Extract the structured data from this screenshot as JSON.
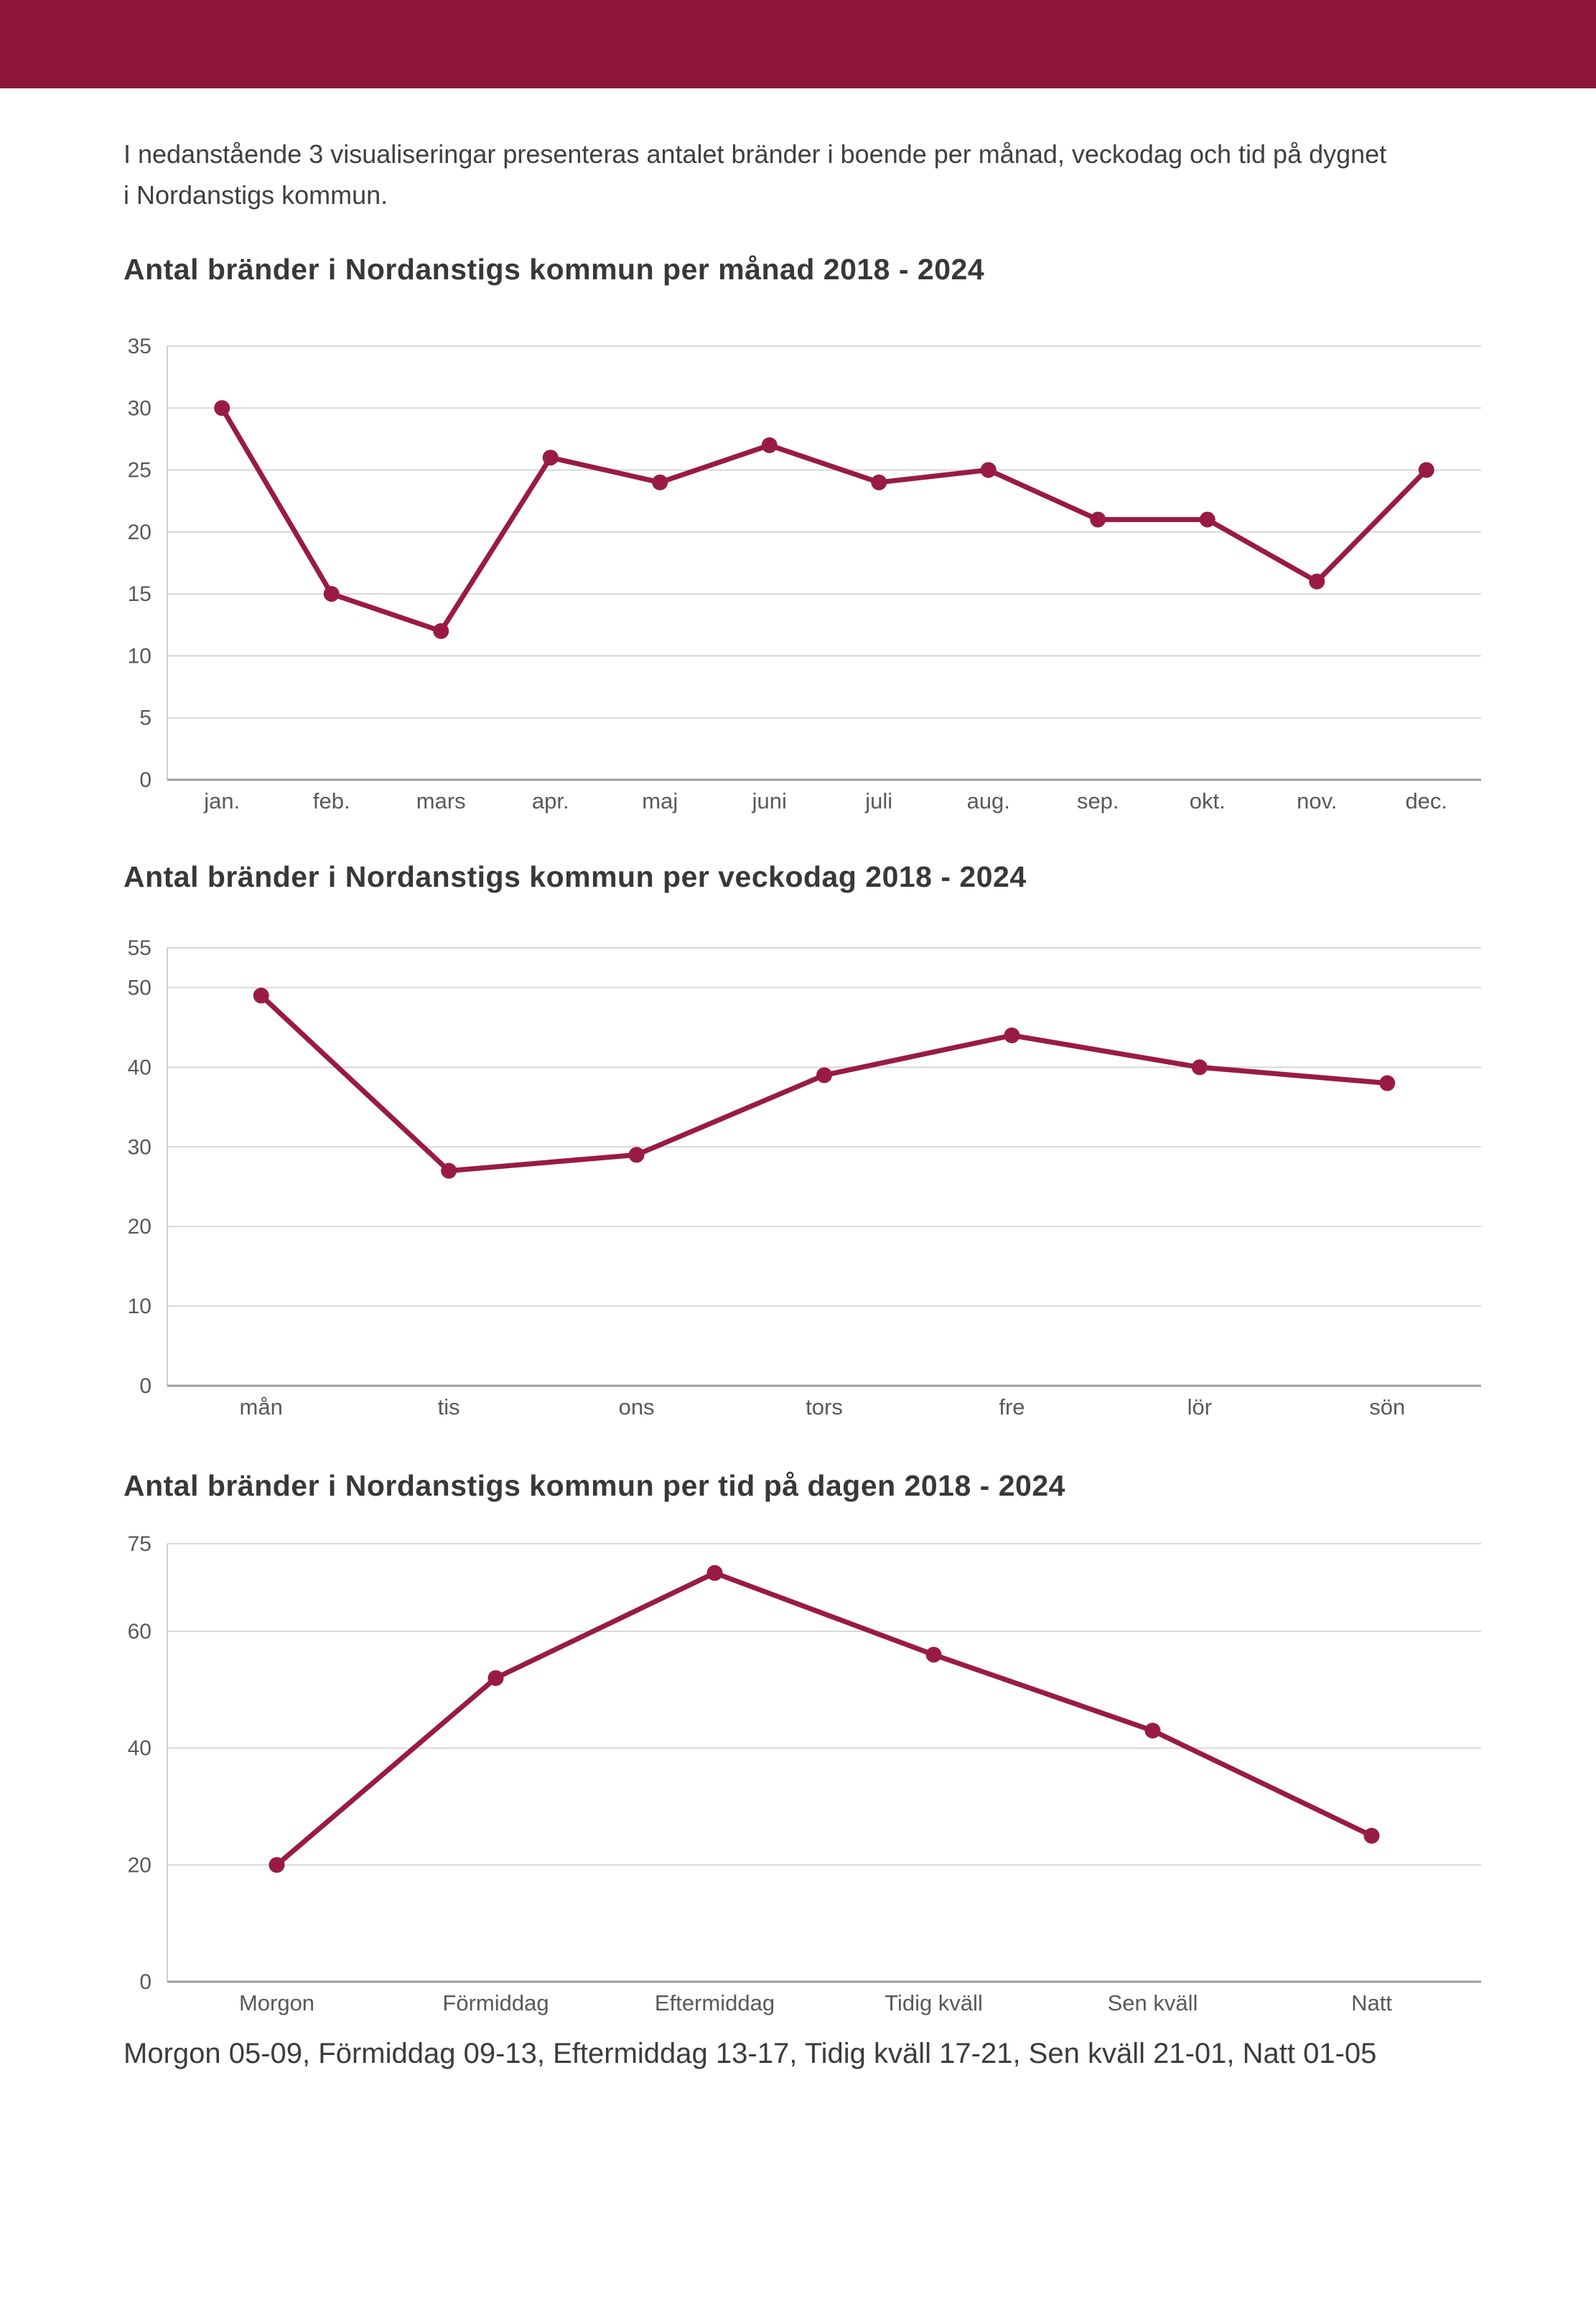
{
  "page": {
    "background": "#ffffff",
    "header_bar_color": "#8C1538",
    "accent_color": "#991B45",
    "text_color": "#3F3F3F",
    "axis_label_color": "#595959",
    "gridline_color": "#D8D8D8",
    "plot_border_color": "#CFCFCF",
    "axis_line_color": "#9B9B9B"
  },
  "intro": {
    "text": "I nedanstående 3 visualiseringar presenteras antalet bränder i boende per månad, veckodag och tid på dygnet\ni Nordanstigs kommun."
  },
  "footer": {
    "text": "Morgon 05-09, Förmiddag 09-13, Eftermiddag 13-17, Tidig kväll 17-21, Sen kväll 21-01, Natt 01-05"
  },
  "chart_data": [
    {
      "type": "line",
      "title": "Antal bränder i Nordanstigs kommun per månad 2018 - 2024",
      "categories": [
        "jan.",
        "feb.",
        "mars",
        "apr.",
        "maj",
        "juni",
        "juli",
        "aug.",
        "sep.",
        "okt.",
        "nov.",
        "dec."
      ],
      "values": [
        30,
        15,
        12,
        26,
        24,
        27,
        24,
        25,
        21,
        21,
        16,
        25
      ],
      "xlabel": "",
      "ylabel": "",
      "ylim": [
        0,
        35
      ],
      "yticks": [
        35,
        30,
        25,
        20,
        15,
        10,
        5,
        0
      ],
      "grid": true,
      "legend": "none",
      "line_color": "#991B45"
    },
    {
      "type": "line",
      "title": "Antal bränder i Nordanstigs kommun per veckodag 2018 - 2024",
      "categories": [
        "mån",
        "tis",
        "ons",
        "tors",
        "fre",
        "lör",
        "sön"
      ],
      "values": [
        49,
        27,
        29,
        39,
        44,
        40,
        38
      ],
      "xlabel": "",
      "ylabel": "",
      "ylim": [
        0,
        55
      ],
      "yticks": [
        55,
        50,
        40,
        30,
        20,
        10,
        0
      ],
      "grid": true,
      "legend": "none",
      "line_color": "#991B45"
    },
    {
      "type": "line",
      "title": "Antal bränder i Nordanstigs kommun per tid på dagen 2018 - 2024",
      "categories": [
        "Morgon",
        "Förmiddag",
        "Eftermiddag",
        "Tidig kväll",
        "Sen kväll",
        "Natt"
      ],
      "values": [
        20,
        52,
        70,
        56,
        43,
        25
      ],
      "xlabel": "",
      "ylabel": "",
      "ylim": [
        0,
        75
      ],
      "yticks": [
        75,
        60,
        40,
        20,
        0
      ],
      "grid": true,
      "legend": "none",
      "line_color": "#991B45"
    }
  ]
}
